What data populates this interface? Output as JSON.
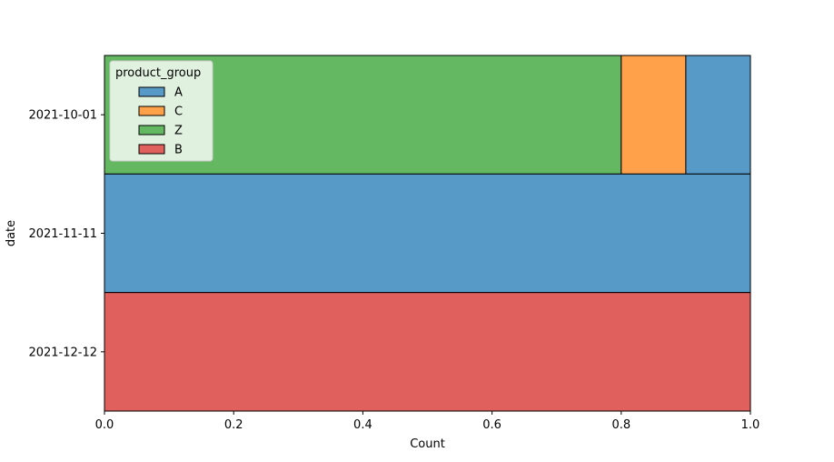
{
  "chart_data": {
    "type": "bar",
    "orientation": "horizontal",
    "stacked": "fill",
    "categories": [
      "2021-10-01",
      "2021-11-11",
      "2021-12-12"
    ],
    "series": [
      {
        "name": "Z",
        "color": "#65b862",
        "values": [
          0.8,
          0,
          0
        ]
      },
      {
        "name": "C",
        "color": "#ffa04a",
        "values": [
          0.1,
          0,
          0
        ]
      },
      {
        "name": "A",
        "color": "#5799c7",
        "values": [
          0.1,
          1.0,
          0
        ]
      },
      {
        "name": "B",
        "color": "#e0605d",
        "values": [
          0,
          0,
          1.0
        ]
      }
    ],
    "xlabel": "Count",
    "ylabel": "date",
    "xlim": [
      0,
      1.0
    ],
    "xticks": [
      "0.0",
      "0.2",
      "0.4",
      "0.6",
      "0.8",
      "1.0"
    ],
    "grid": false,
    "legend": {
      "title": "product_group",
      "placement": "upper-left",
      "entries": [
        {
          "label": "A",
          "color": "#5799c7"
        },
        {
          "label": "C",
          "color": "#ffa04a"
        },
        {
          "label": "Z",
          "color": "#65b862"
        },
        {
          "label": "B",
          "color": "#e0605d"
        }
      ]
    }
  }
}
